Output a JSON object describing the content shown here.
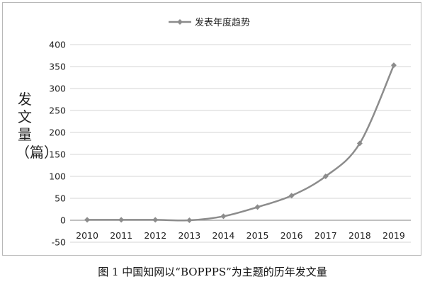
{
  "chart_data": {
    "type": "line",
    "x": [
      "2010",
      "2011",
      "2012",
      "2013",
      "2014",
      "2015",
      "2016",
      "2017",
      "2018",
      "2019"
    ],
    "series": [
      {
        "name": "发表年度趋势",
        "values": [
          1,
          1,
          1,
          0,
          9,
          30,
          56,
          100,
          175,
          353
        ]
      }
    ],
    "ylabel": "发文量（篇）",
    "ylim": [
      -50,
      400
    ],
    "yticks": [
      400,
      350,
      300,
      250,
      200,
      150,
      100,
      50,
      0,
      -50
    ],
    "grid": "horizontal",
    "legend": "top-center",
    "colors": {
      "line": "#8c8c8c",
      "grid": "#d4d4d4",
      "axis": "#9a9a9a"
    }
  },
  "caption": "图 1  中国知网以“BOPPPS”为主题的历年发文量"
}
